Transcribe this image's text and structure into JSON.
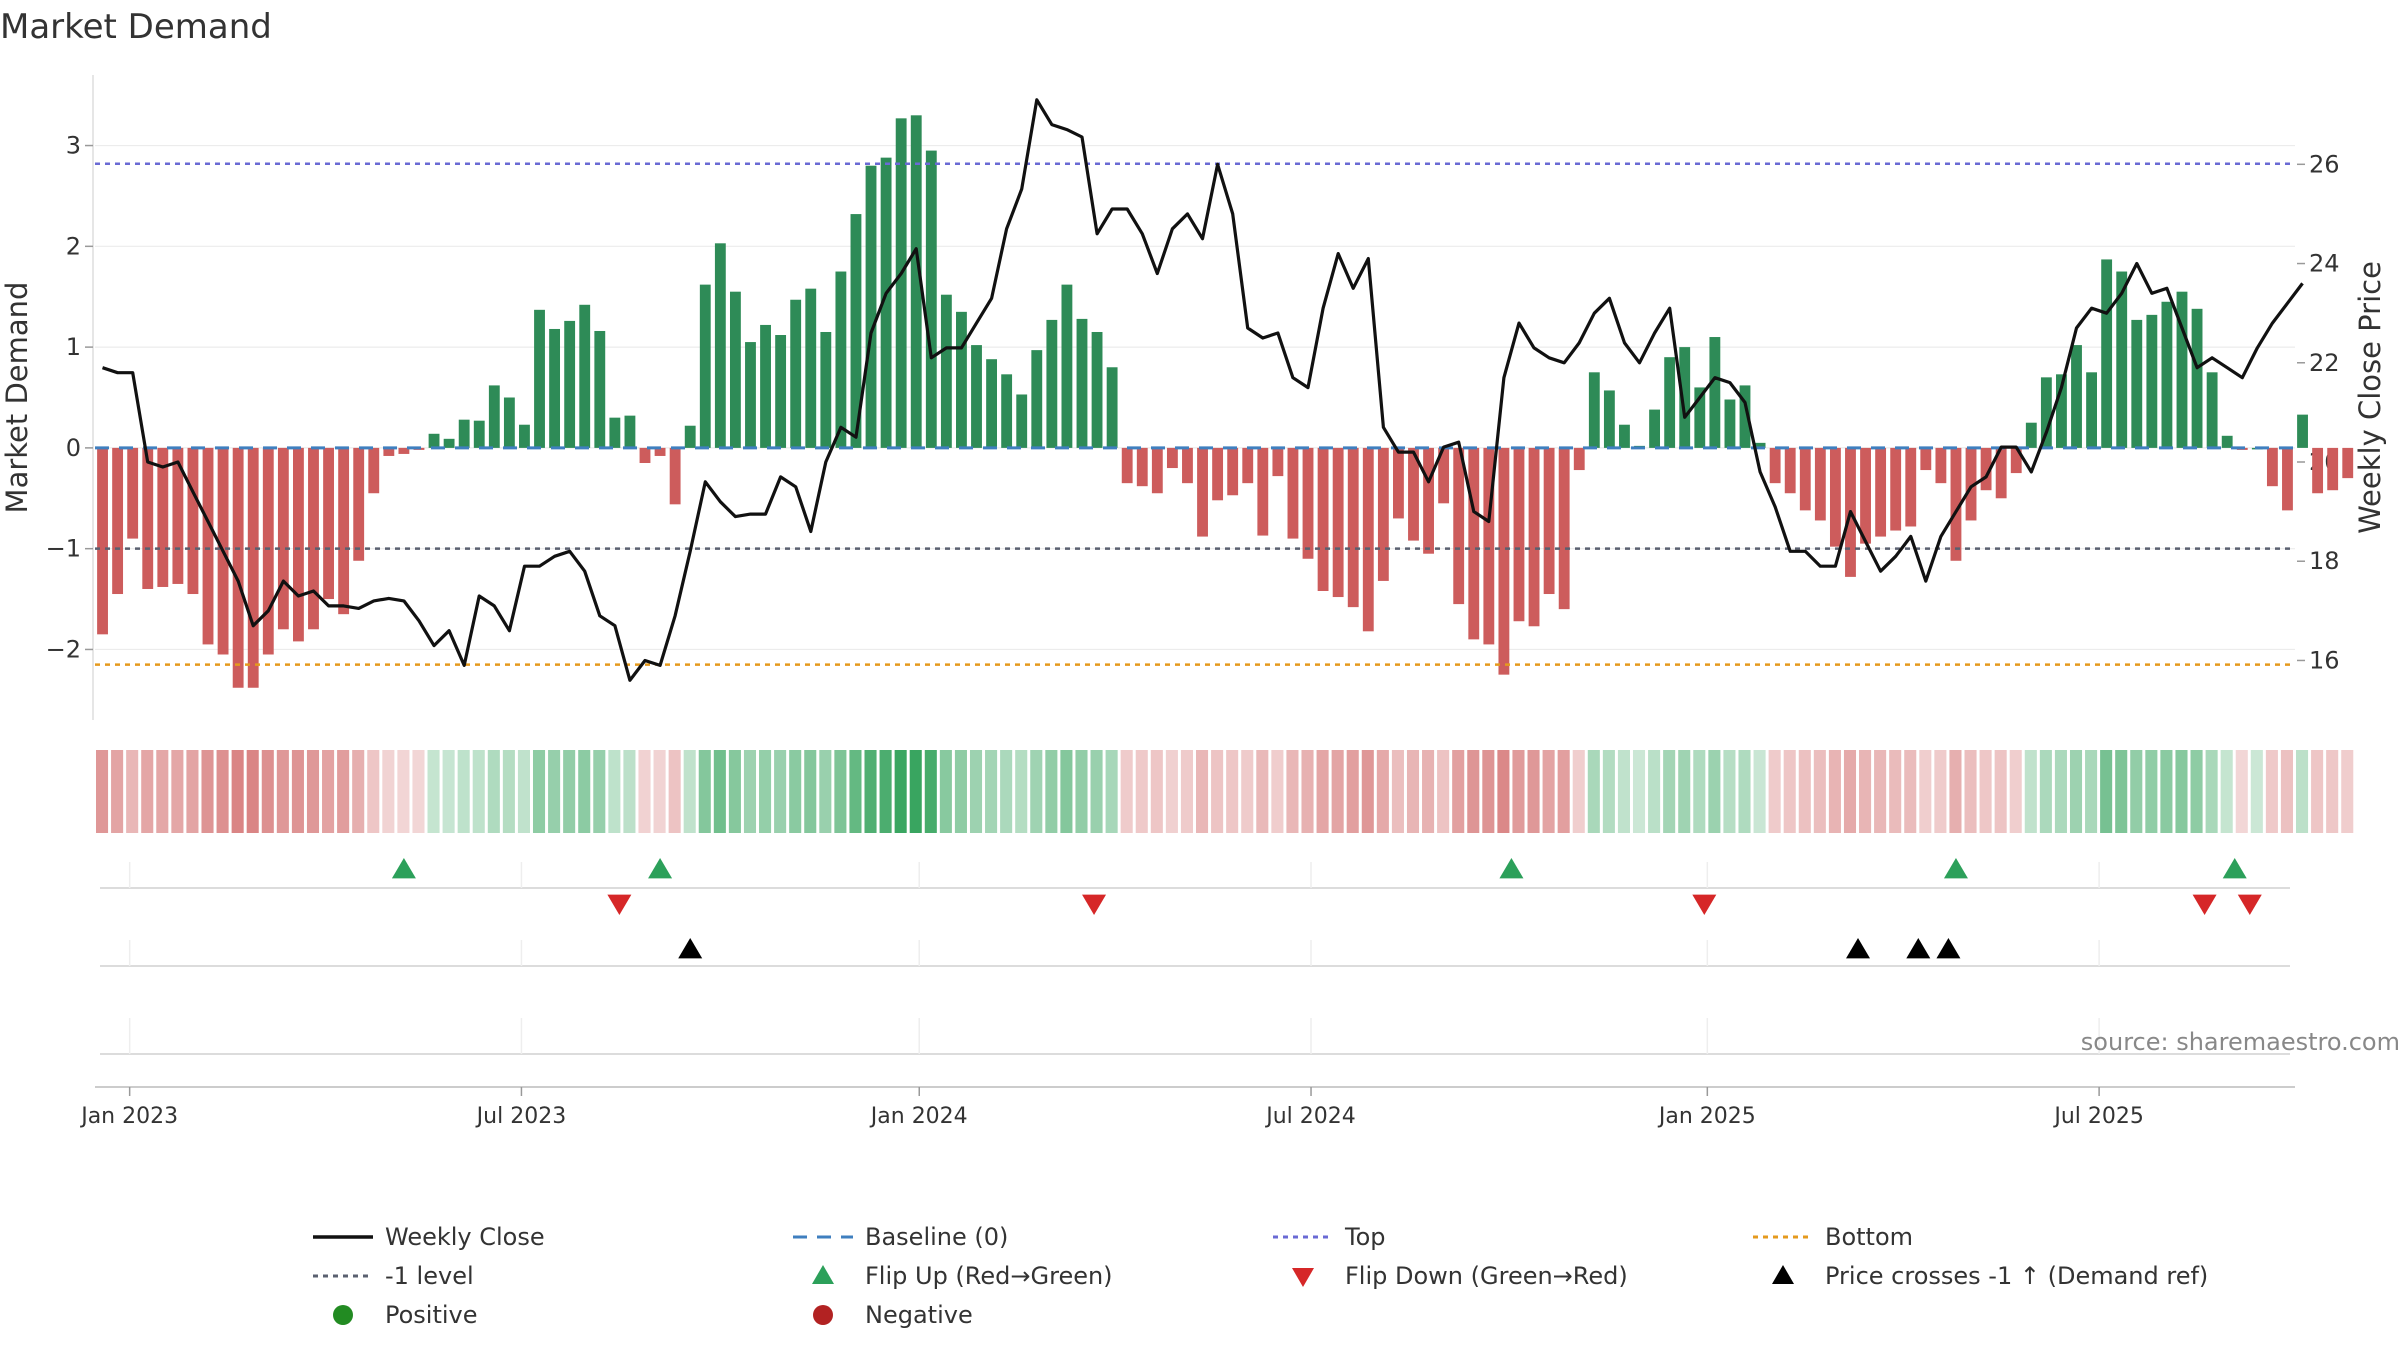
{
  "chart_data": {
    "type": "bar",
    "title": "Market Demand",
    "ylabel": "Market Demand",
    "y2label": "Weekly Close Price",
    "ylim": [
      -2.7,
      3.7
    ],
    "y2lim": [
      14.8,
      27.8
    ],
    "yticks": [
      -2,
      -1,
      0,
      1,
      2,
      3
    ],
    "ytick_labels": [
      "−2",
      "−1",
      "0",
      "1",
      "2",
      "3"
    ],
    "y2ticks": [
      16,
      18,
      20,
      22,
      24,
      26
    ],
    "y2tick_labels": [
      "16",
      "18",
      "20",
      "22",
      "24",
      "26"
    ],
    "x_range_weeks": [
      0,
      146
    ],
    "xticks": [
      {
        "week": 2.3,
        "label": "Jan 2023"
      },
      {
        "week": 28.3,
        "label": "Jul 2023"
      },
      {
        "week": 54.7,
        "label": "Jan 2024"
      },
      {
        "week": 80.7,
        "label": "Jul 2024"
      },
      {
        "week": 107,
        "label": "Jan 2025"
      },
      {
        "week": 133,
        "label": "Jul 2025"
      }
    ],
    "reference_lines": {
      "top": 2.82,
      "bottom": -2.15,
      "minus_one": -1,
      "baseline": 0
    },
    "demand": [
      -1.85,
      -1.45,
      -0.9,
      -1.4,
      -1.38,
      -1.35,
      -1.45,
      -1.95,
      -2.05,
      -2.38,
      -2.38,
      -2.05,
      -1.8,
      -1.92,
      -1.8,
      -1.5,
      -1.65,
      -1.12,
      -0.45,
      -0.08,
      -0.06,
      -0.02,
      0.14,
      0.09,
      0.28,
      0.27,
      0.62,
      0.5,
      0.23,
      1.37,
      1.18,
      1.26,
      1.42,
      1.16,
      0.3,
      0.32,
      -0.15,
      -0.08,
      -0.56,
      0.22,
      1.62,
      2.03,
      1.55,
      1.05,
      1.22,
      1.12,
      1.47,
      1.58,
      1.15,
      1.75,
      2.32,
      2.8,
      2.88,
      3.27,
      3.3,
      2.95,
      1.52,
      1.35,
      1.02,
      0.88,
      0.73,
      0.53,
      0.97,
      1.27,
      1.62,
      1.28,
      1.15,
      0.8,
      -0.35,
      -0.38,
      -0.45,
      -0.2,
      -0.35,
      -0.88,
      -0.52,
      -0.47,
      -0.35,
      -0.87,
      -0.28,
      -0.9,
      -1.1,
      -1.42,
      -1.48,
      -1.58,
      -1.82,
      -1.32,
      -0.7,
      -0.92,
      -1.05,
      -0.55,
      -1.55,
      -1.9,
      -1.95,
      -2.25,
      -1.72,
      -1.77,
      -1.45,
      -1.6,
      -0.22,
      0.75,
      0.57,
      0.23,
      0.02,
      0.38,
      0.9,
      1.0,
      0.6,
      1.1,
      0.48,
      0.62,
      0.05,
      -0.35,
      -0.45,
      -0.62,
      -0.72,
      -0.98,
      -1.28,
      -0.95,
      -0.88,
      -0.82,
      -0.78,
      -0.22,
      -0.35,
      -1.12,
      -0.72,
      -0.42,
      -0.5,
      -0.25,
      0.25,
      0.7,
      0.73,
      1.02,
      0.75,
      1.87,
      1.75,
      1.27,
      1.32,
      1.45,
      1.55,
      1.38,
      0.75,
      0.12,
      -0.02,
      0.0,
      -0.38,
      -0.62,
      0.33,
      -0.45,
      -0.42,
      -0.3
    ],
    "weekly_close": [
      21.9,
      21.8,
      21.8,
      20.0,
      19.9,
      20.0,
      19.4,
      18.8,
      18.2,
      17.6,
      16.7,
      17.0,
      17.6,
      17.3,
      17.4,
      17.1,
      17.1,
      17.05,
      17.2,
      17.25,
      17.2,
      16.8,
      16.3,
      16.6,
      15.9,
      17.3,
      17.1,
      16.6,
      17.9,
      17.9,
      18.1,
      18.2,
      17.8,
      16.9,
      16.7,
      15.6,
      16.0,
      15.9,
      16.9,
      18.2,
      19.6,
      19.2,
      18.9,
      18.95,
      18.95,
      19.7,
      19.5,
      18.6,
      20.0,
      20.7,
      20.5,
      22.6,
      23.4,
      23.8,
      24.3,
      22.1,
      22.3,
      22.3,
      22.8,
      23.3,
      24.7,
      25.5,
      27.3,
      26.8,
      26.7,
      26.55,
      24.6,
      25.1,
      25.1,
      24.6,
      23.8,
      24.7,
      25.0,
      24.5,
      26.0,
      25.0,
      22.7,
      22.5,
      22.6,
      21.7,
      21.5,
      23.1,
      24.2,
      23.5,
      24.1,
      20.7,
      20.2,
      20.2,
      19.6,
      20.3,
      20.4,
      19.0,
      18.8,
      21.7,
      22.8,
      22.3,
      22.1,
      22.0,
      22.4,
      23.0,
      23.3,
      22.4,
      22.0,
      22.6,
      23.1,
      20.9,
      21.3,
      21.7,
      21.6,
      21.2,
      19.8,
      19.1,
      18.2,
      18.2,
      17.9,
      17.9,
      19.0,
      18.4,
      17.8,
      18.1,
      18.5,
      17.6,
      18.5,
      19.0,
      19.5,
      19.7,
      20.3,
      20.3,
      19.8,
      20.6,
      21.5,
      22.7,
      23.1,
      23.0,
      23.4,
      24.0,
      23.4,
      23.5,
      22.7,
      21.9,
      22.1,
      21.9,
      21.7,
      22.3,
      22.8,
      23.2,
      23.6
    ],
    "flip_up_weeks": [
      20.5,
      37.5,
      94,
      123.5,
      142
    ],
    "flip_down_weeks": [
      34.8,
      66.3,
      106.8,
      140,
      143
    ],
    "price_cross_weeks": [
      39.5,
      117,
      121,
      123
    ],
    "source": "source: sharemaestro.com",
    "legend": {
      "position": "bottom",
      "items": [
        {
          "label": "Weekly Close",
          "symbol": "line-solid",
          "color": "#111111"
        },
        {
          "label": "Baseline (0)",
          "symbol": "line-dash",
          "color": "#3f7fbf"
        },
        {
          "label": "Top",
          "symbol": "line-dot",
          "color": "#6a6ad4"
        },
        {
          "label": "Bottom",
          "symbol": "line-dot",
          "color": "#e59a1e"
        },
        {
          "label": "-1 level",
          "symbol": "line-dot",
          "color": "#5a6070"
        },
        {
          "label": "Flip Up (Red→Green)",
          "symbol": "triangle-up",
          "color": "#2ca05a"
        },
        {
          "label": "Flip Down (Green→Red)",
          "symbol": "triangle-down",
          "color": "#d62728"
        },
        {
          "label": "Price crosses -1 ↑ (Demand ref)",
          "symbol": "triangle-up",
          "color": "#000000"
        },
        {
          "label": "Positive",
          "symbol": "circle",
          "color": "#228b22"
        },
        {
          "label": "Negative",
          "symbol": "circle",
          "color": "#b22222"
        }
      ]
    },
    "colors": {
      "positive_bar": "#2e8b57",
      "negative_bar": "#cd5c5c",
      "close_line": "#111111"
    }
  }
}
